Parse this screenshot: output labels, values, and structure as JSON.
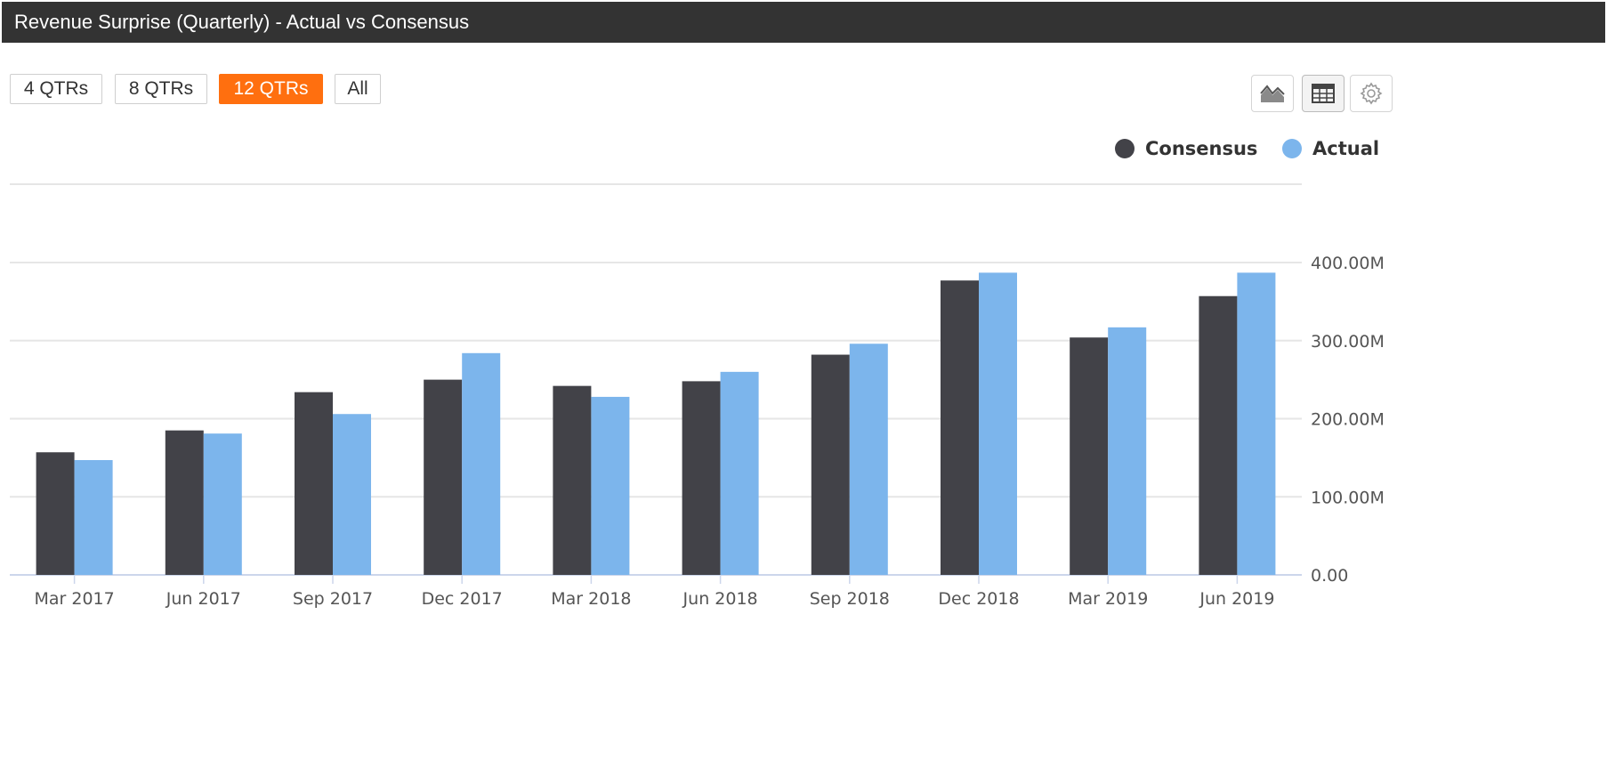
{
  "header": {
    "title": "Revenue Surprise (Quarterly) - Actual vs Consensus"
  },
  "range_buttons": [
    {
      "label": "4 QTRs",
      "active": false
    },
    {
      "label": "8 QTRs",
      "active": false
    },
    {
      "label": "12 QTRs",
      "active": true
    },
    {
      "label": "All",
      "active": false
    }
  ],
  "tools": [
    {
      "icon": "area-chart-icon"
    },
    {
      "icon": "table-icon"
    },
    {
      "icon": "gear-icon"
    }
  ],
  "colors": {
    "consensus": "#424248",
    "actual": "#7cb5ec",
    "active_button": "#ff6f0f",
    "title_bar": "#333333",
    "grid": "#e6e6e6"
  },
  "legend": [
    {
      "name": "Consensus",
      "color": "#424248"
    },
    {
      "name": "Actual",
      "color": "#7cb5ec"
    }
  ],
  "chart_data": {
    "type": "bar",
    "categories": [
      "Mar 2017",
      "Jun 2017",
      "Sep 2017",
      "Dec 2017",
      "Mar 2018",
      "Jun 2018",
      "Sep 2018",
      "Dec 2018",
      "Mar 2019",
      "Jun 2019"
    ],
    "series": [
      {
        "name": "Consensus",
        "values": [
          157,
          185,
          234,
          250,
          242,
          248,
          282,
          377,
          304,
          357
        ]
      },
      {
        "name": "Actual",
        "values": [
          147,
          181,
          206,
          284,
          228,
          260,
          296,
          387,
          317,
          387
        ]
      }
    ],
    "ylim": [
      0,
      400
    ],
    "y_ticks": [
      "0.00",
      "100.00M",
      "200.00M",
      "300.00M",
      "400.00M"
    ],
    "y_axis_position": "right",
    "grid": true,
    "legend_position": "top-right"
  }
}
